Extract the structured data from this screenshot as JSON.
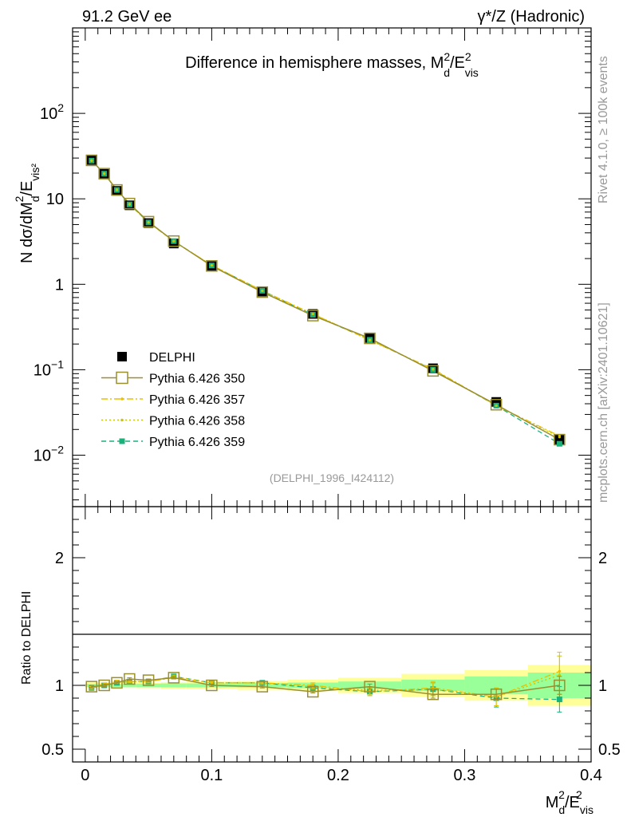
{
  "header": {
    "energy_label": "91.2 GeV ee",
    "process_label": "γ*/Z (Hadronic)",
    "side_label_top": "Rivet 4.1.0, ≥ 100k events",
    "side_label_bottom": "mcplots.cern.ch [arXiv:2401.10621]",
    "analysis_id": "(DELPHI_1996_I424112)"
  },
  "colors": {
    "data": "#000000",
    "py350": "#9a8f2e",
    "py357": "#e8c000",
    "py358": "#c8c800",
    "py359": "#19b27a",
    "band_yellow": "#ffff99",
    "band_green": "#99ff99"
  },
  "chart_data": [
    {
      "type": "line",
      "name": "main",
      "title": "Difference in hemisphere masses, M_d^2/E_vis^2",
      "title_text": "Difference in hemisphere masses, M",
      "title_sup": "2",
      "title_sub": "d",
      "title_tail": "/E",
      "title_tail_sup": "2",
      "title_tail_sub": "vis",
      "ylabel": "N  dσ/dM_d^2/E_vis^2",
      "ylabel_parts": {
        "a": "N  dσ/dM",
        "b": "d",
        "c": "2",
        "d": "/E",
        "e": "vis²"
      },
      "yscale": "log",
      "ylim": [
        0.0025,
        1000
      ],
      "xlim": [
        -0.01,
        0.4
      ],
      "ytick_labels": [
        {
          "value": 0.01,
          "base": "10",
          "exp": "−2"
        },
        {
          "value": 0.1,
          "base": "10",
          "exp": "−1"
        },
        {
          "value": 1,
          "base": "1",
          "exp": ""
        },
        {
          "value": 10,
          "base": "10",
          "exp": ""
        },
        {
          "value": 100,
          "base": "10",
          "exp": "2"
        }
      ],
      "x": [
        0.005,
        0.015,
        0.025,
        0.035,
        0.05,
        0.07,
        0.1,
        0.14,
        0.18,
        0.225,
        0.275,
        0.325,
        0.375
      ],
      "series": [
        {
          "name": "DELPHI",
          "key": "data",
          "values": [
            28.5,
            19.6,
            12.4,
            8.4,
            5.2,
            3.0,
            1.63,
            0.82,
            0.45,
            0.235,
            0.104,
            0.042,
            0.0152
          ]
        },
        {
          "name": "Pythia 6.426 350",
          "key": "py350",
          "values": [
            28.2,
            19.7,
            12.7,
            8.8,
            5.4,
            3.2,
            1.64,
            0.81,
            0.43,
            0.233,
            0.097,
            0.039,
            0.0152
          ]
        },
        {
          "name": "Pythia 6.426 357",
          "key": "py357",
          "values": [
            28.0,
            19.8,
            12.8,
            8.7,
            5.3,
            3.2,
            1.67,
            0.84,
            0.45,
            0.222,
            0.102,
            0.038,
            0.0168
          ]
        },
        {
          "name": "Pythia 6.426 358",
          "key": "py358",
          "values": [
            28.1,
            19.7,
            12.7,
            8.6,
            5.3,
            3.2,
            1.67,
            0.84,
            0.45,
            0.223,
            0.101,
            0.038,
            0.0163
          ]
        },
        {
          "name": "Pythia 6.426 359",
          "key": "py359",
          "values": [
            28.0,
            19.7,
            12.7,
            8.6,
            5.3,
            3.2,
            1.66,
            0.84,
            0.44,
            0.224,
            0.1,
            0.038,
            0.0136
          ]
        }
      ],
      "legend": [
        {
          "label": "DELPHI",
          "key": "data",
          "style": "square"
        },
        {
          "label": "Pythia 6.426 350",
          "key": "py350",
          "style": "open-square"
        },
        {
          "label": "Pythia 6.426 357",
          "key": "py357",
          "style": "dashdot"
        },
        {
          "label": "Pythia 6.426 358",
          "key": "py358",
          "style": "dotted"
        },
        {
          "label": "Pythia 6.426 359",
          "key": "py359",
          "style": "dashed"
        }
      ]
    },
    {
      "type": "line",
      "name": "ratio",
      "ylabel": "Ratio to DELPHI",
      "ylim": [
        0.4,
        2.4
      ],
      "xlim": [
        -0.01,
        0.4
      ],
      "yticks": [
        0.5,
        1,
        2
      ],
      "ytick_labels": [
        "0.5",
        "1",
        "2"
      ],
      "xticks": [
        0,
        0.1,
        0.2,
        0.3,
        0.4
      ],
      "xtick_labels": [
        "0",
        "0.1",
        "0.2",
        "0.3",
        "0.4"
      ],
      "xlabel": "M_d^2/E_vis^2",
      "xlabel_parts": {
        "a": "M",
        "b": "d",
        "c": "2",
        "d": "/E",
        "e": "vis",
        "f": "2"
      },
      "bands": {
        "bin_edges": [
          0,
          0.01,
          0.02,
          0.03,
          0.04,
          0.06,
          0.08,
          0.12,
          0.16,
          0.2,
          0.25,
          0.3,
          0.35,
          0.4
        ],
        "green_halfwidth": [
          0.012,
          0.012,
          0.012,
          0.012,
          0.013,
          0.015,
          0.015,
          0.017,
          0.022,
          0.03,
          0.045,
          0.07,
          0.1
        ],
        "yellow_halfwidth": [
          0.02,
          0.02,
          0.02,
          0.02,
          0.022,
          0.025,
          0.03,
          0.035,
          0.045,
          0.06,
          0.09,
          0.12,
          0.16
        ]
      },
      "series": [
        {
          "name": "Pythia 6.426 350",
          "key": "py350",
          "values": [
            0.99,
            1.0,
            1.02,
            1.05,
            1.04,
            1.06,
            1.0,
            0.99,
            0.95,
            0.99,
            0.93,
            0.93,
            1.0
          ],
          "errors": [
            0.01,
            0.01,
            0.01,
            0.01,
            0.01,
            0.01,
            0.01,
            0.01,
            0.01,
            0.02,
            0.03,
            0.04,
            0.07
          ]
        },
        {
          "name": "Pythia 6.426 357",
          "key": "py357",
          "values": [
            0.98,
            1.01,
            1.03,
            1.03,
            1.03,
            1.06,
            1.02,
            1.02,
            1.0,
            0.95,
            0.98,
            0.91,
            1.11
          ],
          "errors": [
            0.01,
            0.01,
            0.01,
            0.01,
            0.01,
            0.01,
            0.01,
            0.01,
            0.02,
            0.03,
            0.05,
            0.07,
            0.15
          ]
        },
        {
          "name": "Pythia 6.426 358",
          "key": "py358",
          "values": [
            0.98,
            1.0,
            1.02,
            1.03,
            1.03,
            1.07,
            1.02,
            1.02,
            0.99,
            0.96,
            0.97,
            0.91,
            1.08
          ],
          "errors": [
            0.01,
            0.01,
            0.01,
            0.01,
            0.01,
            0.01,
            0.01,
            0.01,
            0.02,
            0.03,
            0.05,
            0.07,
            0.15
          ]
        },
        {
          "name": "Pythia 6.426 359",
          "key": "py359",
          "values": [
            0.98,
            1.0,
            1.02,
            1.03,
            1.03,
            1.07,
            1.02,
            1.02,
            0.98,
            0.95,
            0.97,
            0.9,
            0.89
          ],
          "errors": [
            0.01,
            0.01,
            0.01,
            0.01,
            0.01,
            0.01,
            0.01,
            0.01,
            0.02,
            0.03,
            0.05,
            0.07,
            0.1
          ]
        }
      ]
    }
  ]
}
